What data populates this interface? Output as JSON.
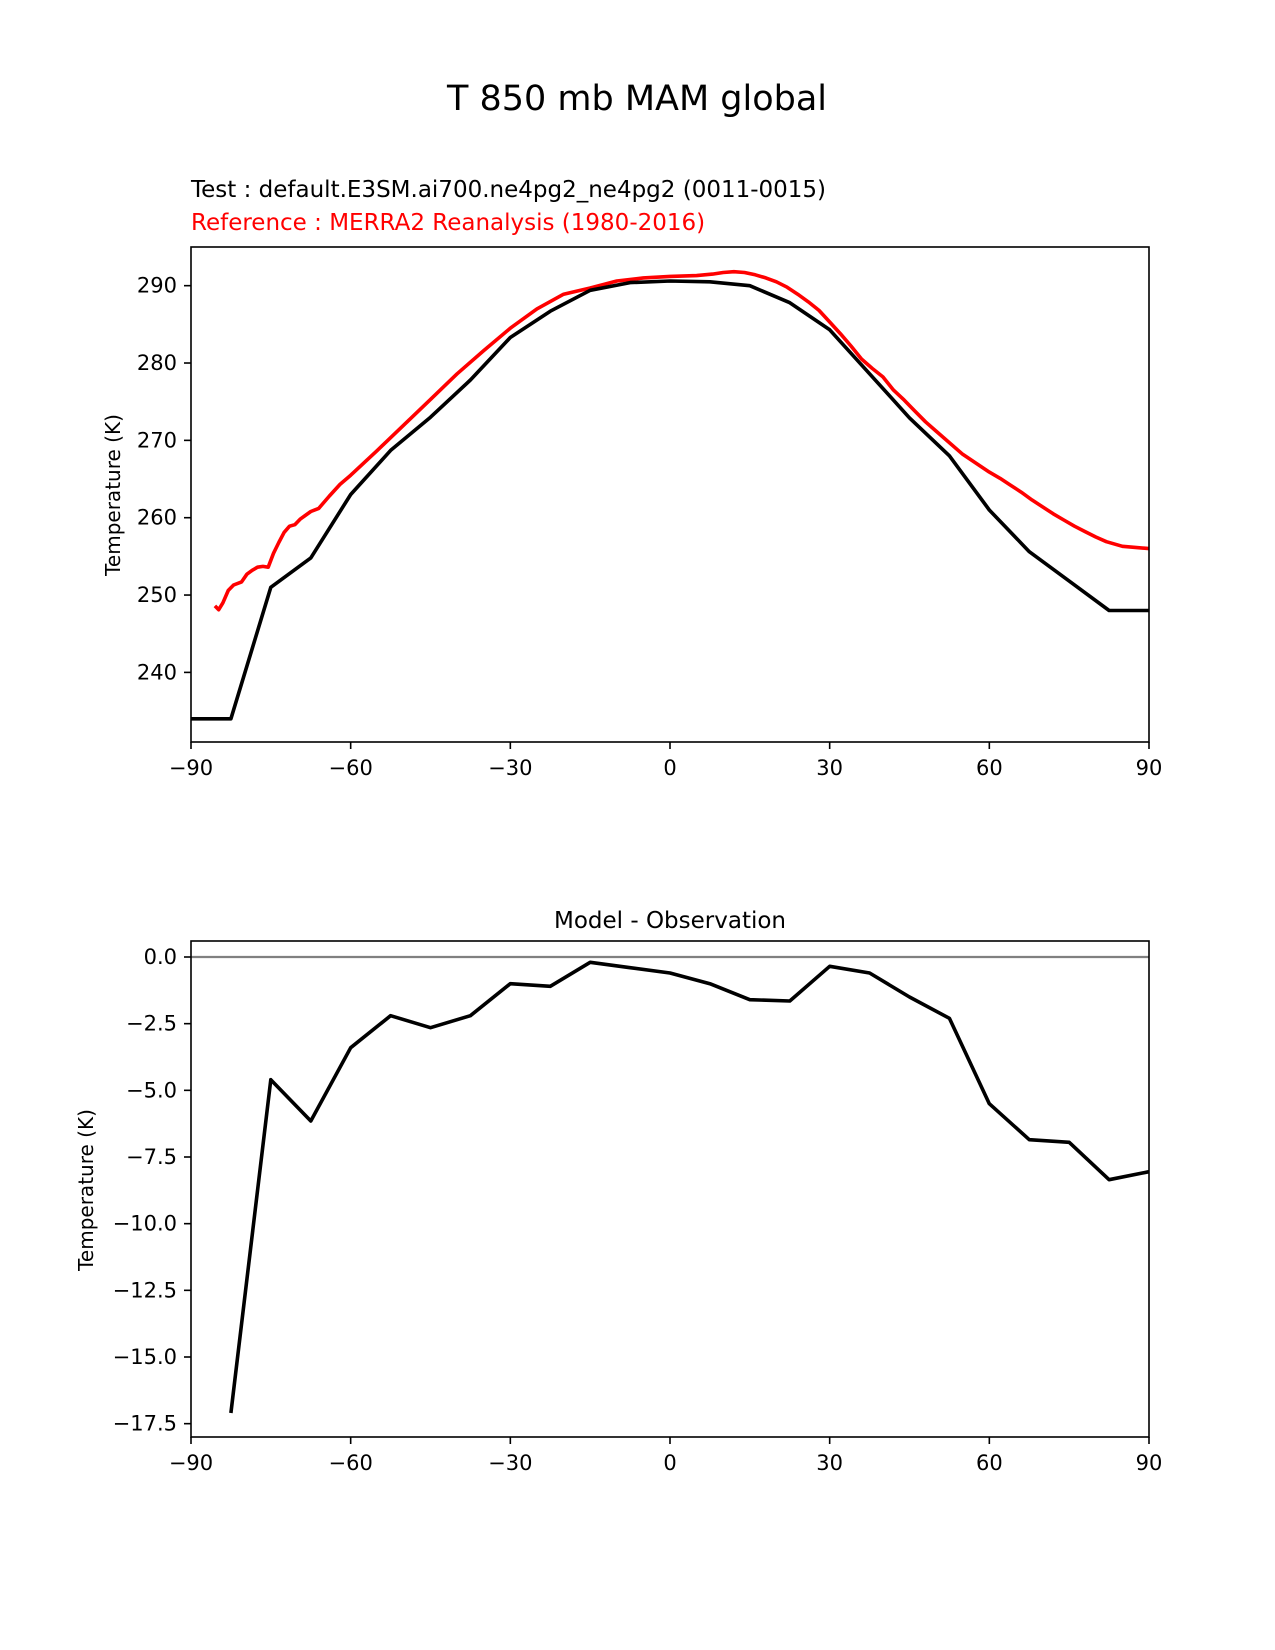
{
  "figure": {
    "suptitle": "T 850 mb MAM global"
  },
  "colors": {
    "test": "#000000",
    "reference": "#ff0000",
    "zero_line": "#808080"
  },
  "chart_data": [
    {
      "type": "line",
      "title": "",
      "legend_position": "top-left",
      "test_label": "Test : default.E3SM.ai700.ne4pg2_ne4pg2 (0011-0015)",
      "reference_label": "Reference : MERRA2 Reanalysis (1980-2016)",
      "xlabel": "",
      "ylabel": "Temperature (K)",
      "xlim": [
        -90,
        90
      ],
      "ylim": [
        231,
        295
      ],
      "xticks": [
        -90,
        -60,
        -30,
        0,
        30,
        60,
        90
      ],
      "xtick_labels": [
        "−90",
        "−60",
        "−30",
        "0",
        "30",
        "60",
        "90"
      ],
      "yticks": [
        240,
        250,
        260,
        270,
        280,
        290
      ],
      "ytick_labels": [
        "240",
        "250",
        "260",
        "270",
        "280",
        "290"
      ],
      "series": [
        {
          "name": "Test",
          "x": [
            -90,
            -82.5,
            -75,
            -67.5,
            -60,
            -52.5,
            -45,
            -37.5,
            -30,
            -22.5,
            -15,
            -7.5,
            0,
            7.5,
            15,
            22.5,
            30,
            37.5,
            45,
            52.5,
            60,
            67.5,
            75,
            82.5,
            90
          ],
          "values": [
            234,
            234,
            251,
            254.8,
            263,
            268.7,
            273,
            277.8,
            283.3,
            286.7,
            289.4,
            290.4,
            290.6,
            290.5,
            290,
            287.8,
            284.3,
            278.6,
            272.9,
            268,
            261,
            255.6,
            251.8,
            248,
            248
          ]
        },
        {
          "name": "Reference",
          "x": [
            -85.5,
            -84.8,
            -84,
            -83,
            -82,
            -80.5,
            -79.5,
            -78.5,
            -77.5,
            -76.5,
            -75.5,
            -74.5,
            -73.5,
            -72.5,
            -71.5,
            -70.5,
            -69.5,
            -68.5,
            -67.5,
            -66,
            -64,
            -62,
            -60,
            -55,
            -50,
            -45,
            -40,
            -35,
            -30,
            -25,
            -20,
            -15,
            -10,
            -5,
            0,
            5,
            8,
            10,
            12,
            14,
            16,
            18,
            20,
            22,
            24,
            26,
            28,
            30,
            32,
            34,
            36,
            38,
            40,
            42,
            44,
            46,
            48,
            50,
            55,
            60,
            62,
            64,
            66,
            68,
            70,
            72,
            74,
            76,
            78,
            80,
            82,
            85,
            90
          ],
          "values": [
            248.6,
            248.1,
            249,
            250.6,
            251.3,
            251.7,
            252.7,
            253.2,
            253.6,
            253.7,
            253.6,
            255.4,
            256.8,
            258.1,
            258.9,
            259.1,
            259.8,
            260.3,
            260.8,
            261.2,
            262.8,
            264.3,
            265.5,
            268.7,
            272,
            275.3,
            278.6,
            281.6,
            284.5,
            287,
            288.9,
            289.7,
            290.6,
            291,
            291.2,
            291.3,
            291.5,
            291.7,
            291.8,
            291.7,
            291.4,
            291,
            290.5,
            289.8,
            288.9,
            287.9,
            286.8,
            285.3,
            283.8,
            282.2,
            280.5,
            279.3,
            278.2,
            276.5,
            275.2,
            273.8,
            272.4,
            271.2,
            268.2,
            265.9,
            265.1,
            264.2,
            263.3,
            262.3,
            261.4,
            260.5,
            259.7,
            258.9,
            258.2,
            257.5,
            256.9,
            256.3,
            256
          ]
        }
      ]
    },
    {
      "type": "line",
      "title": "Model - Observation",
      "xlabel": "",
      "ylabel": "Temperature (K)",
      "xlim": [
        -90,
        90
      ],
      "ylim": [
        -18,
        0.6
      ],
      "xticks": [
        -90,
        -60,
        -30,
        0,
        30,
        60,
        90
      ],
      "xtick_labels": [
        "−90",
        "−60",
        "−30",
        "0",
        "30",
        "60",
        "90"
      ],
      "yticks": [
        0,
        -2.5,
        -5,
        -7.5,
        -10,
        -12.5,
        -15,
        -17.5
      ],
      "ytick_labels": [
        "0.0",
        "−2.5",
        "−5.0",
        "−7.5",
        "−10.0",
        "−12.5",
        "−15.0",
        "−17.5"
      ],
      "reference_line": 0,
      "series": [
        {
          "name": "Model - Observation",
          "x": [
            -82.5,
            -75,
            -67.5,
            -60,
            -52.5,
            -45,
            -37.5,
            -30,
            -22.5,
            -15,
            -7.5,
            0,
            7.5,
            15,
            22.5,
            30,
            37.5,
            45,
            52.5,
            60,
            67.5,
            75,
            82.5,
            90
          ],
          "values": [
            -17.1,
            -4.6,
            -6.15,
            -3.4,
            -2.2,
            -2.65,
            -2.2,
            -1,
            -1.1,
            -0.2,
            -0.4,
            -0.6,
            -1,
            -1.6,
            -1.65,
            -0.35,
            -0.6,
            -1.5,
            -2.3,
            -5.5,
            -6.85,
            -6.95,
            -8.35,
            -8.05
          ]
        }
      ]
    }
  ]
}
